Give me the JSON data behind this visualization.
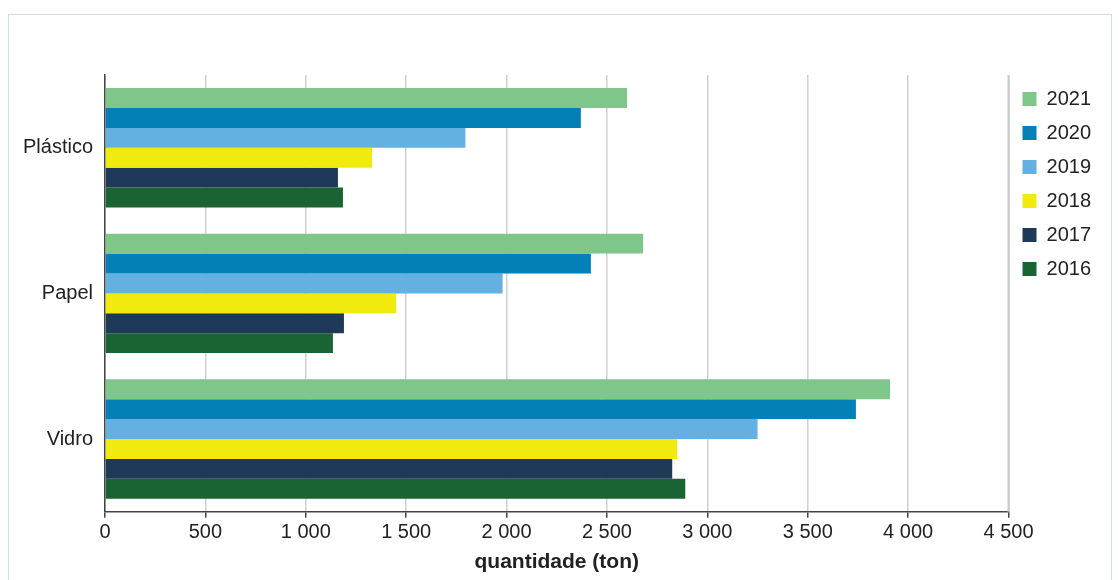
{
  "chart_data": {
    "type": "bar",
    "orientation": "horizontal",
    "xlabel": "quantidade (ton)",
    "categories": [
      "Plástico",
      "Papel",
      "Vidro"
    ],
    "series": [
      {
        "name": "2021",
        "color": "#7fc68a",
        "values": [
          2600,
          2680,
          3910
        ]
      },
      {
        "name": "2020",
        "color": "#0380b6",
        "values": [
          2370,
          2420,
          3740
        ]
      },
      {
        "name": "2019",
        "color": "#63b0e1",
        "values": [
          1795,
          1980,
          3250
        ]
      },
      {
        "name": "2018",
        "color": "#f1ea0e",
        "values": [
          1330,
          1450,
          2850
        ]
      },
      {
        "name": "2017",
        "color": "#1f3a58",
        "values": [
          1160,
          1190,
          2825
        ]
      },
      {
        "name": "2016",
        "color": "#1a6333",
        "values": [
          1185,
          1135,
          2890
        ]
      }
    ],
    "xlim": [
      0,
      4500
    ],
    "xticks": [
      {
        "value": 0,
        "label": "0"
      },
      {
        "value": 500,
        "label": "500"
      },
      {
        "value": 1000,
        "label": "1 000"
      },
      {
        "value": 1500,
        "label": "1 500"
      },
      {
        "value": 2000,
        "label": "2 000"
      },
      {
        "value": 2500,
        "label": "2 500"
      },
      {
        "value": 3000,
        "label": "3 000"
      },
      {
        "value": 3500,
        "label": "3 500"
      },
      {
        "value": 4000,
        "label": "4 000"
      },
      {
        "value": 4500,
        "label": "4 500"
      }
    ],
    "grid": "x",
    "legend": "right"
  }
}
